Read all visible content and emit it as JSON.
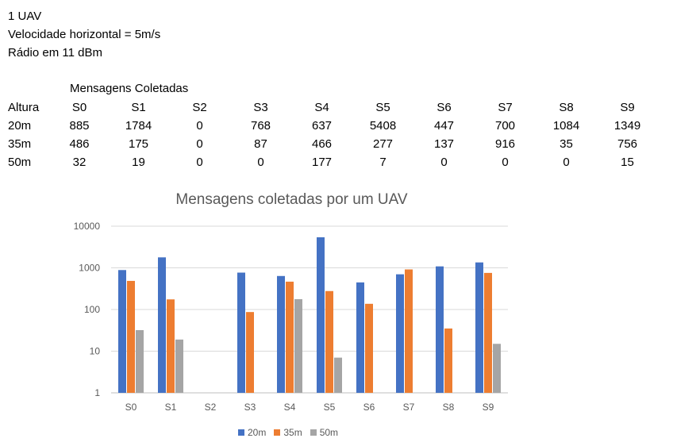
{
  "header": {
    "line1": "1 UAV",
    "line2": "Velocidade horizontal = 5m/s",
    "line3": "Rádio em 11 dBm"
  },
  "table": {
    "title": "Mensagens Coletadas",
    "row_header": "Altura",
    "columns": [
      "S0",
      "S1",
      "S2",
      "S3",
      "S4",
      "S5",
      "S6",
      "S7",
      "S8",
      "S9"
    ],
    "rows": [
      {
        "label": "20m",
        "values": [
          "885",
          "1784",
          "0",
          "768",
          "637",
          "5408",
          "447",
          "700",
          "1084",
          "1349"
        ]
      },
      {
        "label": "35m",
        "values": [
          "486",
          "175",
          "0",
          "87",
          "466",
          "277",
          "137",
          "916",
          "35",
          "756"
        ]
      },
      {
        "label": "50m",
        "values": [
          "32",
          "19",
          "0",
          "0",
          "177",
          "7",
          "0",
          "0",
          "0",
          "15"
        ]
      }
    ]
  },
  "chart_data": {
    "type": "bar",
    "title": "Mensagens coletadas por um UAV",
    "xlabel": "",
    "ylabel": "",
    "yscale": "log",
    "ylim": [
      1,
      10000
    ],
    "yticks": [
      "1",
      "10",
      "100",
      "1000",
      "10000"
    ],
    "grid": true,
    "legend": "bottom",
    "categories": [
      "S0",
      "S1",
      "S2",
      "S3",
      "S4",
      "S5",
      "S6",
      "S7",
      "S8",
      "S9"
    ],
    "series": [
      {
        "name": "20m",
        "color": "#4472C4",
        "values": [
          885,
          1784,
          0,
          768,
          637,
          5408,
          447,
          700,
          1084,
          1349
        ]
      },
      {
        "name": "35m",
        "color": "#ED7D31",
        "values": [
          486,
          175,
          0,
          87,
          466,
          277,
          137,
          916,
          35,
          756
        ]
      },
      {
        "name": "50m",
        "color": "#A5A5A5",
        "values": [
          32,
          19,
          0,
          0,
          177,
          7,
          0,
          0,
          0,
          15
        ]
      }
    ]
  }
}
